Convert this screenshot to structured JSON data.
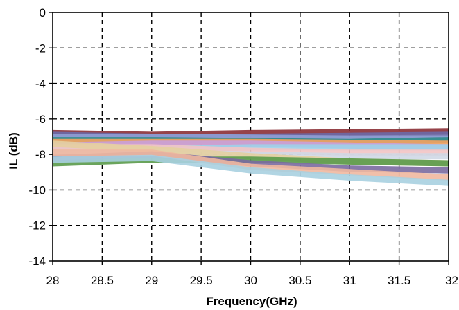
{
  "chart_data": {
    "type": "line",
    "title": "",
    "xlabel": "Frequency(GHz)",
    "ylabel": "IL (dB)",
    "xlim": [
      28,
      32
    ],
    "ylim": [
      -14,
      0
    ],
    "xticks": [
      28,
      28.5,
      29,
      29.5,
      30,
      30.5,
      31,
      31.5,
      32
    ],
    "yticks": [
      0,
      -2,
      -4,
      -6,
      -8,
      -10,
      -12,
      -14
    ],
    "grid": true,
    "legend": "none",
    "series": [
      {
        "color": "#8b2f35",
        "x": [
          28,
          29,
          30,
          31,
          32
        ],
        "y": [
          -6.8,
          -6.9,
          -6.8,
          -6.75,
          -6.7
        ]
      },
      {
        "color": "#6b6aa8",
        "x": [
          28,
          29,
          30,
          31,
          32
        ],
        "y": [
          -6.9,
          -7.0,
          -7.0,
          -6.95,
          -6.9
        ]
      },
      {
        "color": "#8f9fd4",
        "x": [
          28,
          29,
          30,
          31,
          32
        ],
        "y": [
          -7.0,
          -7.0,
          -7.05,
          -7.1,
          -7.1
        ]
      },
      {
        "color": "#2e8b88",
        "x": [
          28,
          29,
          30,
          31,
          32
        ],
        "y": [
          -7.2,
          -7.2,
          -7.25,
          -7.3,
          -7.2
        ]
      },
      {
        "color": "#f4a261",
        "x": [
          28,
          29,
          30,
          31,
          32
        ],
        "y": [
          -7.3,
          -7.3,
          -7.3,
          -7.35,
          -7.4
        ]
      },
      {
        "color": "#c9a0dc",
        "x": [
          28,
          29,
          30,
          31,
          32
        ],
        "y": [
          -7.5,
          -7.4,
          -7.4,
          -7.5,
          -7.6
        ]
      },
      {
        "color": "#9fd0e8",
        "x": [
          28,
          29,
          30,
          31,
          32
        ],
        "y": [
          -7.8,
          -7.7,
          -7.6,
          -7.6,
          -7.6
        ]
      },
      {
        "color": "#f2c4c4",
        "x": [
          28,
          29,
          30,
          31,
          32
        ],
        "y": [
          -7.6,
          -7.6,
          -7.8,
          -7.9,
          -7.9
        ]
      },
      {
        "color": "#cfd8e6",
        "x": [
          28,
          29,
          30,
          31,
          32
        ],
        "y": [
          -8.0,
          -7.9,
          -8.0,
          -8.1,
          -8.1
        ]
      },
      {
        "color": "#e4cfa0",
        "x": [
          28,
          29,
          30,
          31,
          32
        ],
        "y": [
          -7.4,
          -7.7,
          -8.1,
          -8.4,
          -8.5
        ]
      },
      {
        "color": "#5a9a4a",
        "x": [
          28,
          29,
          30,
          31,
          32
        ],
        "y": [
          -8.5,
          -8.3,
          -8.3,
          -8.4,
          -8.5
        ]
      },
      {
        "color": "#7a6aa0",
        "x": [
          28,
          29,
          30,
          31,
          32
        ],
        "y": [
          -8.2,
          -8.0,
          -8.5,
          -8.8,
          -8.9
        ]
      },
      {
        "color": "#f0b8a0",
        "x": [
          28,
          29,
          30,
          31,
          32
        ],
        "y": [
          -7.9,
          -7.9,
          -8.7,
          -9.0,
          -9.3
        ]
      },
      {
        "color": "#a8d0e0",
        "x": [
          28,
          29,
          30,
          31,
          32
        ],
        "y": [
          -8.3,
          -8.2,
          -8.9,
          -9.3,
          -9.6
        ]
      }
    ]
  }
}
